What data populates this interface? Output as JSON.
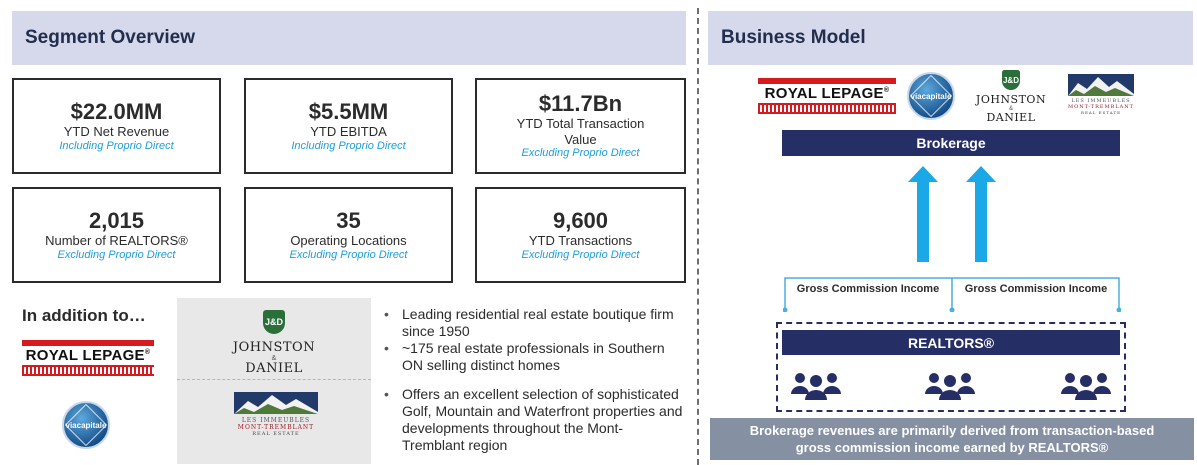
{
  "segment_overview": {
    "title": "Segment Overview",
    "stats": [
      {
        "value": "$22.0MM",
        "label": "YTD Net Revenue",
        "note": "Including Proprio Direct"
      },
      {
        "value": "$5.5MM",
        "label": "YTD EBITDA",
        "note": "Including Proprio Direct"
      },
      {
        "value": "$11.7Bn",
        "label": "YTD Total Transaction Value",
        "note": "Excluding Proprio Direct"
      },
      {
        "value": "2,015",
        "label": "Number of REALTORS®",
        "note": "Excluding Proprio Direct"
      },
      {
        "value": "35",
        "label": "Operating Locations",
        "note": "Excluding Proprio Direct"
      },
      {
        "value": "9,600",
        "label": "YTD Transactions",
        "note": "Excluding Proprio Direct"
      }
    ],
    "in_addition_title": "In addition to…",
    "bullets_jd": [
      "Leading residential real estate boutique firm since 1950",
      "~175 real estate professionals in Southern ON selling distinct homes"
    ],
    "bullets_mt": [
      "Offers an excellent selection of sophisticated Golf, Mountain and Waterfront properties and developments throughout the Mont-Tremblant region"
    ]
  },
  "business_model": {
    "title": "Business Model",
    "brokerage_label": "Brokerage",
    "gci_left": "Gross Commission Income",
    "gci_right": "Gross Commission Income",
    "realtors_label": "REALTORS®",
    "callout_line1": "Brokerage revenues are primarily derived from transaction-based",
    "callout_line2": "gross commission income earned by REALTORS®"
  },
  "logos": {
    "royal_lepage": "ROYAL LEPAGE",
    "royal_lepage_mark": "®",
    "via_capitale": "viacapitale",
    "jd_monogram": "J&D",
    "jd_line1": "JOHNSTON",
    "jd_amp": "&",
    "jd_line2": "DANIEL",
    "mt_line1": "LES IMMEUBLES",
    "mt_line2": "MONT-TREMBLANT",
    "mt_line3": "REAL ESTATE"
  },
  "colors": {
    "header_bg": "#d6d9ec",
    "navy": "#262e66",
    "accent_blue": "#1f9ddb",
    "arrow_blue": "#1aa8e6",
    "callout_bg": "#8590a3",
    "rlp_red": "#d71920"
  },
  "icons": [
    "up-arrow-icon",
    "people-group-icon"
  ]
}
